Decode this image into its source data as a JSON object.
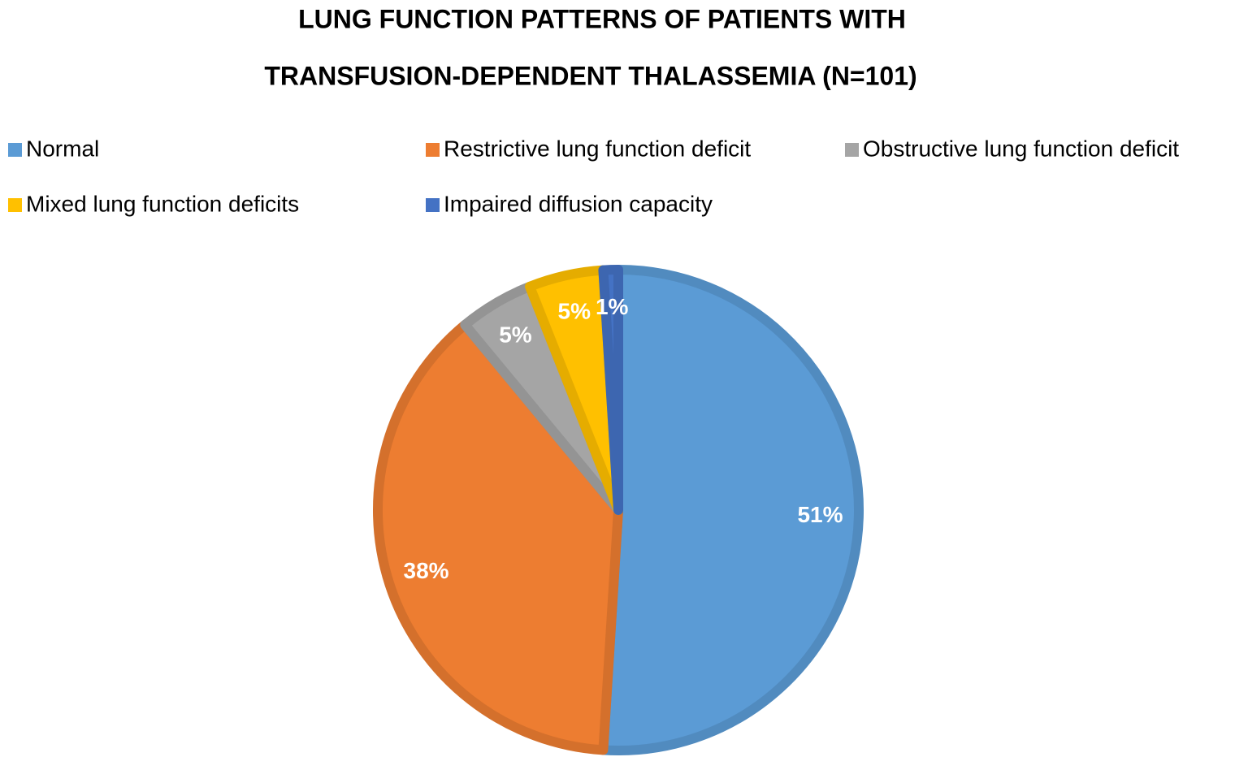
{
  "chart_data": {
    "type": "pie",
    "title": [
      "LUNG FUNCTION PATTERNS OF PATIENTS WITH",
      "TRANSFUSION-DEPENDENT THALASSEMIA (N=101)"
    ],
    "categories": [
      "Normal",
      "Restrictive lung function deficit",
      "Obstructive lung function deficit",
      "Mixed lung function deficits",
      "Impaired diffusion capacity"
    ],
    "values": [
      51,
      38,
      5,
      5,
      1
    ],
    "value_labels": [
      "51%",
      "38%",
      "5%",
      "5%",
      "1%"
    ],
    "colors": [
      "#5b9bd5",
      "#ed7d31",
      "#a5a5a5",
      "#ffc000",
      "#4472c4"
    ],
    "legend": "top"
  }
}
